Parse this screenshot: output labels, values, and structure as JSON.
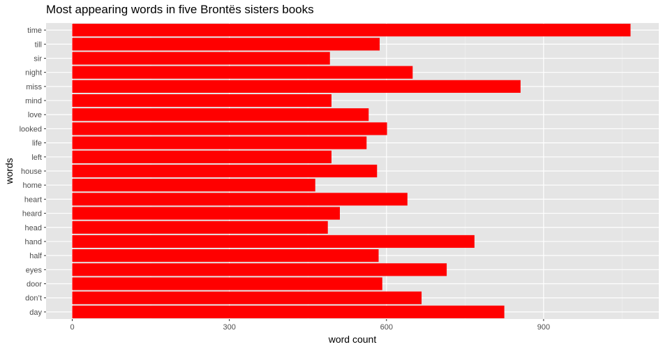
{
  "chart_data": {
    "type": "bar",
    "orientation": "horizontal",
    "title": "Most appearing words in five Brontës sisters books",
    "xlabel": "word count",
    "ylabel": "words",
    "categories": [
      "day",
      "don’t",
      "door",
      "eyes",
      "half",
      "hand",
      "head",
      "heard",
      "heart",
      "home",
      "house",
      "left",
      "life",
      "looked",
      "love",
      "mind",
      "miss",
      "night",
      "sir",
      "till",
      "time"
    ],
    "values": [
      825,
      667,
      592,
      715,
      585,
      768,
      488,
      511,
      640,
      464,
      582,
      495,
      562,
      601,
      566,
      495,
      856,
      650,
      492,
      587,
      1066
    ],
    "xlim": [
      -50,
      1120
    ],
    "xticks": [
      0,
      300,
      600,
      900
    ],
    "xtick_labels": [
      "0",
      "300",
      "600",
      "900"
    ],
    "grid": true,
    "bar_color": "#ff0000",
    "panel_color": "#e5e5e5"
  }
}
